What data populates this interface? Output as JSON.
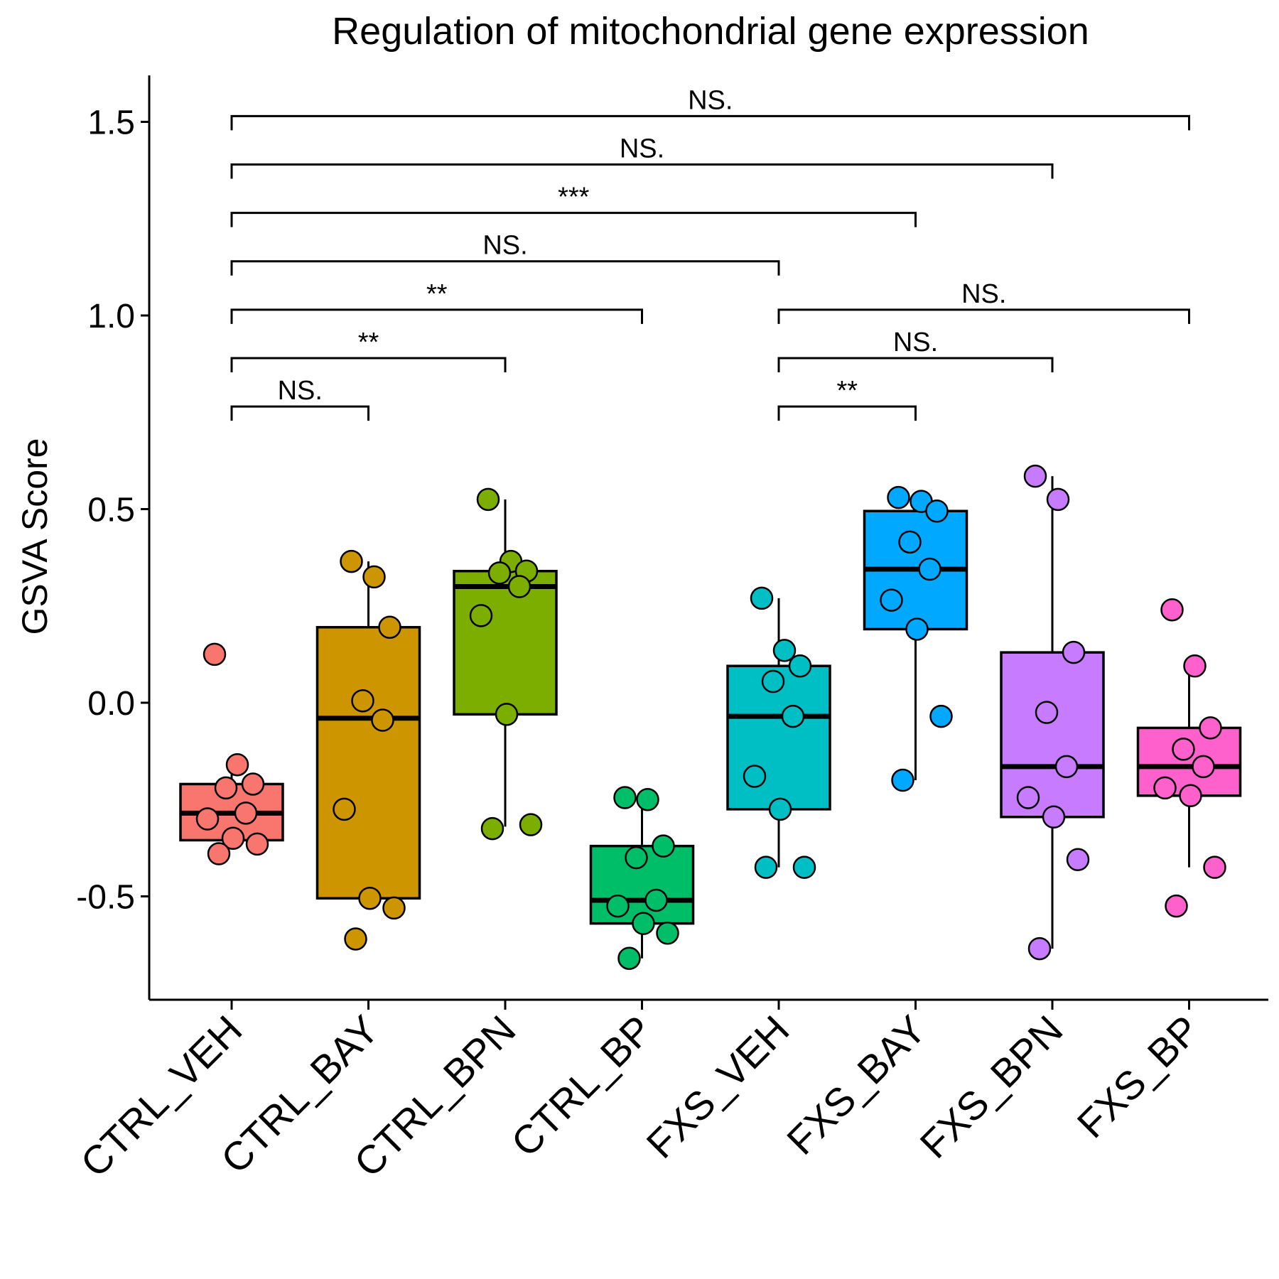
{
  "chart_data": {
    "type": "box",
    "title": "Regulation of mitochondrial gene expression",
    "ylabel": "GSVA Score",
    "ylim": [
      -0.77,
      1.62
    ],
    "yticks": [
      1.5,
      1.0,
      0.5,
      0.0,
      -0.5
    ],
    "ytick_labels": [
      "1.5",
      "1.0",
      "0.5",
      "0.0",
      "-0.5"
    ],
    "categories": [
      "CTRL_VEH",
      "CTRL_BAY",
      "CTRL_BPN",
      "CTRL_BP",
      "FXS_VEH",
      "FXS_BAY",
      "FXS_BPN",
      "FXS_BP"
    ],
    "colors": [
      "#F8766D",
      "#CD9600",
      "#7CAE00",
      "#00BE67",
      "#00BFC4",
      "#00A9FF",
      "#C77CFF",
      "#FF61CC"
    ],
    "boxes": [
      {
        "group": "CTRL_VEH",
        "q1": -0.355,
        "median": -0.285,
        "q3": -0.21,
        "whisker_low": -0.355,
        "whisker_high": -0.16
      },
      {
        "group": "CTRL_BAY",
        "q1": -0.505,
        "median": -0.04,
        "q3": 0.195,
        "whisker_low": -0.505,
        "whisker_high": 0.365
      },
      {
        "group": "CTRL_BPN",
        "q1": -0.03,
        "median": 0.3,
        "q3": 0.34,
        "whisker_low": -0.32,
        "whisker_high": 0.525
      },
      {
        "group": "CTRL_BP",
        "q1": -0.57,
        "median": -0.51,
        "q3": -0.37,
        "whisker_low": -0.66,
        "whisker_high": -0.25
      },
      {
        "group": "FXS_VEH",
        "q1": -0.275,
        "median": -0.035,
        "q3": 0.095,
        "whisker_low": -0.425,
        "whisker_high": 0.27
      },
      {
        "group": "FXS_BAY",
        "q1": 0.19,
        "median": 0.345,
        "q3": 0.495,
        "whisker_low": -0.2,
        "whisker_high": 0.53
      },
      {
        "group": "FXS_BPN",
        "q1": -0.295,
        "median": -0.165,
        "q3": 0.13,
        "whisker_low": -0.635,
        "whisker_high": 0.585
      },
      {
        "group": "FXS_BP",
        "q1": -0.24,
        "median": -0.165,
        "q3": -0.065,
        "whisker_low": -0.425,
        "whisker_high": 0.09
      }
    ],
    "points": [
      {
        "group": "CTRL_VEH",
        "values": [
          0.125,
          -0.16,
          -0.21,
          -0.22,
          -0.285,
          -0.3,
          -0.35,
          -0.365,
          -0.39
        ]
      },
      {
        "group": "CTRL_BAY",
        "values": [
          0.365,
          0.325,
          0.195,
          0.005,
          -0.045,
          -0.275,
          -0.505,
          -0.53,
          -0.61
        ]
      },
      {
        "group": "CTRL_BPN",
        "values": [
          0.525,
          0.365,
          0.34,
          0.335,
          0.3,
          0.225,
          -0.03,
          -0.315,
          -0.325
        ]
      },
      {
        "group": "CTRL_BP",
        "values": [
          -0.245,
          -0.25,
          -0.37,
          -0.4,
          -0.51,
          -0.525,
          -0.57,
          -0.595,
          -0.66
        ]
      },
      {
        "group": "FXS_VEH",
        "values": [
          0.27,
          0.135,
          0.095,
          0.055,
          -0.035,
          -0.19,
          -0.275,
          -0.425,
          -0.425
        ]
      },
      {
        "group": "FXS_BAY",
        "values": [
          0.53,
          0.52,
          0.495,
          0.415,
          0.345,
          0.265,
          0.19,
          -0.035,
          -0.2
        ]
      },
      {
        "group": "FXS_BPN",
        "values": [
          0.585,
          0.525,
          0.13,
          -0.025,
          -0.165,
          -0.245,
          -0.295,
          -0.405,
          -0.635
        ]
      },
      {
        "group": "FXS_BP",
        "values": [
          0.24,
          0.095,
          -0.065,
          -0.12,
          -0.165,
          -0.22,
          -0.24,
          -0.425,
          -0.525
        ]
      }
    ],
    "comparisons": [
      {
        "from": "CTRL_VEH",
        "to": "FXS_BP",
        "label": "NS.",
        "y": 1.515
      },
      {
        "from": "CTRL_VEH",
        "to": "FXS_BPN",
        "label": "NS.",
        "y": 1.39
      },
      {
        "from": "CTRL_VEH",
        "to": "FXS_BAY",
        "label": "***",
        "y": 1.265
      },
      {
        "from": "CTRL_VEH",
        "to": "FXS_VEH",
        "label": "NS.",
        "y": 1.14
      },
      {
        "from": "CTRL_VEH",
        "to": "CTRL_BP",
        "label": "**",
        "y": 1.015
      },
      {
        "from": "CTRL_VEH",
        "to": "CTRL_BPN",
        "label": "**",
        "y": 0.89
      },
      {
        "from": "CTRL_VEH",
        "to": "CTRL_BAY",
        "label": "NS.",
        "y": 0.765
      },
      {
        "from": "FXS_VEH",
        "to": "FXS_BP",
        "label": "NS.",
        "y": 1.015
      },
      {
        "from": "FXS_VEH",
        "to": "FXS_BPN",
        "label": "NS.",
        "y": 0.89
      },
      {
        "from": "FXS_VEH",
        "to": "FXS_BAY",
        "label": "**",
        "y": 0.765
      }
    ],
    "legend": "none",
    "grid": false
  }
}
